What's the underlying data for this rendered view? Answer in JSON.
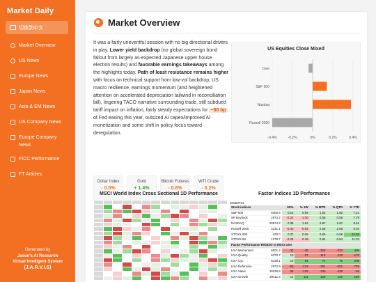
{
  "sidebar": {
    "brand": "Market Daily",
    "lang_button": "切換到中文",
    "items": [
      {
        "label": "Market Overview",
        "icon": "globe-icon"
      },
      {
        "label": "US News",
        "icon": "globe-icon"
      },
      {
        "label": "Europe News",
        "icon": "bank-icon"
      },
      {
        "label": "Japan News",
        "icon": "bank-icon"
      },
      {
        "label": "Asia & EM News",
        "icon": "store-icon"
      },
      {
        "label": "US Company News",
        "icon": "store-icon"
      },
      {
        "label": "Europe Company News",
        "icon": "store-icon"
      },
      {
        "label": "FICC Performance",
        "icon": "chart-icon"
      },
      {
        "label": "FT Articles",
        "icon": "newspaper-icon"
      }
    ],
    "footer": {
      "line1": "Generated by",
      "line2": "Jason's AI Research",
      "line3": "Virtual Intelligent System",
      "line4": "(J.A.R.V.I.S)"
    }
  },
  "main": {
    "title": "Market Overview",
    "para": {
      "p1": "It was a fairly uneventful session with no big directional drivers in play. ",
      "b1": "Lower yield backdrop",
      "p2": " (no global sovereign bond fallout from largely as-expected Japanese upper house election results) and ",
      "b2": "favorable earnings takeaways",
      "p3": " among the highlights today. ",
      "b3": "Path of least resistance remains higher",
      "p4": " with focus on technical support from low-vol backdrop, US macro resilience, earnings momentum (and heightened attention on accelerated depreciation tailwind in reconciliation bill), lingering TACO narrative surrounding trade, still subdued tariff impact on inflation, fairly steady expectations for ",
      "hl": "~50 bp",
      "p5": " of Fed easing this year, outsized AI capex/improved AI monetization and some shift in policy focus toward deregulation."
    },
    "tiles": [
      {
        "name": "Dollar Index",
        "value": "- 0.5%",
        "dir": "neg"
      },
      {
        "name": "Gold",
        "value": "+ 1.4%",
        "dir": "pos"
      },
      {
        "name": "Bitcoin Futures",
        "value": "- 0.6%",
        "dir": "neg"
      },
      {
        "name": "WTI Crude",
        "value": "- 0.2%",
        "dir": "neg"
      }
    ],
    "heatmap_title": "MSCI World Index Cross Sectional 1D Performance",
    "factor_title": "Factor Indices 1D Performance",
    "factor": {
      "date": "20250721",
      "header": [
        "Stock indices",
        "1D%",
        "% 1W",
        "% MTD",
        "% QTD",
        "% YTD"
      ],
      "rows": [
        [
          "S&P 500",
          "6305.6",
          "0.14",
          "0.59",
          "1.62",
          "1.62",
          "7.21"
        ],
        [
          "SP Buyback",
          "2974.2",
          "-0.22",
          "-1.00",
          "0.56",
          "0.56",
          "7.79"
        ],
        [
          "NASDAQ",
          "20974.2",
          "0.38",
          "1.62",
          "2.97",
          "2.97",
          "8.61"
        ],
        [
          "Russell 2000",
          "2231.1",
          "-0.40",
          "-0.83",
          "2.58",
          "2.58",
          "0.04"
        ],
        [
          "STOXX 600",
          "420.0",
          "0.37",
          "0.06",
          "0.69",
          "0.69",
          "24.83"
        ],
        [
          "STOXX 50",
          "1379.7",
          "-0.26",
          "-0.48",
          "0.84",
          "0.84",
          "11.33"
        ]
      ],
      "sub_header": "Factor Performance Relative to MSCI USA",
      "rows2": [
        [
          "USA Momentum",
          "6001.3",
          "-11",
          "-48",
          "-222",
          "-222",
          "496"
        ],
        [
          "USA Quality",
          "6273.7",
          "10",
          "-37",
          "-110",
          "-110",
          "-170"
        ],
        [
          "USA Cyc",
          "6138.1",
          "10",
          "94",
          "71",
          "71",
          "206"
        ],
        [
          "USA Defensive",
          "2872.9",
          "-65",
          "-243",
          "-291",
          "-291",
          "-729"
        ],
        [
          "USA Value",
          "19316.8",
          "-33",
          "-115",
          "-130",
          "-130",
          "-26"
        ],
        [
          "USA Growth",
          "29411.9",
          "14",
          "111",
          "120",
          "120",
          "194"
        ]
      ]
    }
  },
  "chart_data": {
    "type": "bar",
    "title": "US Equities Close Mixed",
    "categories": [
      "Dow",
      "S&P 500",
      "Nasdaq",
      "Russell 2000"
    ],
    "values": [
      -0.04,
      0.14,
      0.38,
      -0.4
    ],
    "xlim": [
      -0.4,
      0.4
    ],
    "xticks": [
      "-0.4%",
      "-0.2%",
      "0%",
      "0.2%",
      "0.4%"
    ],
    "colors": {
      "positive": "#f36f21",
      "negative": "#a8a8a8"
    },
    "grid": true
  }
}
